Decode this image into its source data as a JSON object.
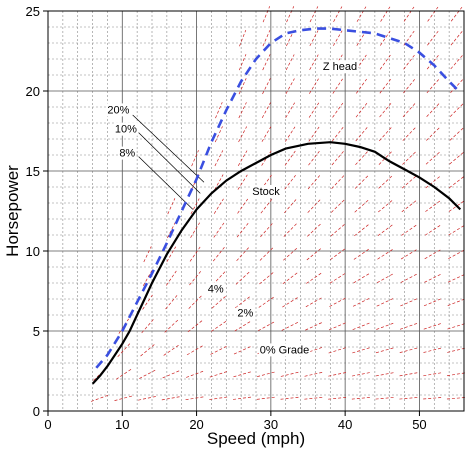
{
  "chart_data": {
    "type": "line",
    "title": "",
    "xlabel": "Speed (mph)",
    "ylabel": "Horsepower",
    "xlim": [
      0,
      56
    ],
    "ylim": [
      0,
      25
    ],
    "x_ticks": [
      0,
      10,
      20,
      30,
      40,
      50
    ],
    "y_ticks": [
      0,
      5,
      10,
      15,
      20,
      25
    ],
    "grid": true,
    "legend": "none",
    "series": [
      {
        "name": "Stock",
        "color": "#000000",
        "style": "solid",
        "points": [
          [
            6,
            1.7
          ],
          [
            7,
            2.2
          ],
          [
            8,
            2.8
          ],
          [
            9,
            3.5
          ],
          [
            10,
            4.2
          ],
          [
            11,
            5.0
          ],
          [
            12,
            6.0
          ],
          [
            13,
            7.0
          ],
          [
            14,
            8.0
          ],
          [
            16,
            9.8
          ],
          [
            18,
            11.3
          ],
          [
            20,
            12.6
          ],
          [
            22,
            13.6
          ],
          [
            24,
            14.4
          ],
          [
            26,
            15.0
          ],
          [
            28,
            15.5
          ],
          [
            30,
            16.0
          ],
          [
            32,
            16.4
          ],
          [
            35,
            16.7
          ],
          [
            38,
            16.8
          ],
          [
            40,
            16.7
          ],
          [
            42,
            16.5
          ],
          [
            44,
            16.2
          ],
          [
            46,
            15.6
          ],
          [
            48,
            15.1
          ],
          [
            50,
            14.6
          ],
          [
            52,
            14.0
          ],
          [
            54,
            13.3
          ],
          [
            55.5,
            12.6
          ]
        ]
      },
      {
        "name": "Z head",
        "color": "#3a4fe0",
        "style": "dashed",
        "points": [
          [
            6.5,
            2.7
          ],
          [
            8,
            3.5
          ],
          [
            10,
            5.0
          ],
          [
            12,
            6.8
          ],
          [
            14,
            8.6
          ],
          [
            16,
            10.5
          ],
          [
            18,
            12.5
          ],
          [
            20,
            14.5
          ],
          [
            22,
            16.8
          ],
          [
            24,
            18.8
          ],
          [
            26,
            20.6
          ],
          [
            28,
            22.0
          ],
          [
            30,
            23.0
          ],
          [
            32,
            23.6
          ],
          [
            34,
            23.8
          ],
          [
            36,
            23.9
          ],
          [
            38,
            23.9
          ],
          [
            40,
            23.8
          ],
          [
            42,
            23.7
          ],
          [
            44,
            23.6
          ],
          [
            46,
            23.3
          ],
          [
            48,
            23.0
          ],
          [
            50,
            22.4
          ],
          [
            52,
            21.6
          ],
          [
            54,
            20.6
          ],
          [
            55.5,
            19.9
          ]
        ]
      }
    ],
    "grade_field": {
      "style": "red short dashed segments",
      "color": "#cc2222"
    },
    "annotations": [
      {
        "text": "Z head",
        "x": 37,
        "y": 21.3
      },
      {
        "text": "20%",
        "x": 8.0,
        "y": 18.6
      },
      {
        "text": "10%",
        "x": 9.0,
        "y": 17.4
      },
      {
        "text": "8%",
        "x": 9.6,
        "y": 15.9
      },
      {
        "text": "Stock",
        "x": 27.5,
        "y": 13.5
      },
      {
        "text": "4%",
        "x": 21.5,
        "y": 7.4
      },
      {
        "text": "2%",
        "x": 25.5,
        "y": 5.9
      },
      {
        "text": "0% Grade",
        "x": 28.5,
        "y": 3.6
      }
    ],
    "leader_lines": [
      {
        "from": [
          11.4,
          18.5
        ],
        "to": [
          21.0,
          14.3
        ]
      },
      {
        "from": [
          12.2,
          17.4
        ],
        "to": [
          20.5,
          13.6
        ]
      },
      {
        "from": [
          12.2,
          15.9
        ],
        "to": [
          19.5,
          12.6
        ]
      }
    ]
  }
}
